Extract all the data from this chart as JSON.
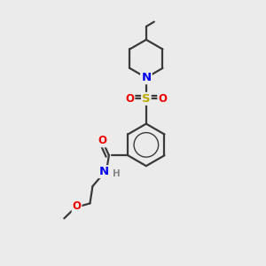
{
  "background_color": "#ebebeb",
  "bond_color": "#3a3a3a",
  "atom_colors": {
    "N": "#0000ee",
    "O": "#ee0000",
    "S": "#bbaa00",
    "H": "#888888"
  },
  "figsize": [
    3.0,
    3.0
  ],
  "dpi": 100,
  "xlim": [
    0,
    10
  ],
  "ylim": [
    0,
    10
  ]
}
